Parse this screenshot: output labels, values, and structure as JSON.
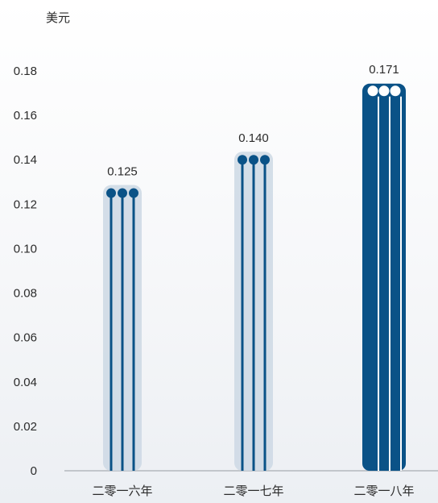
{
  "chart_data": {
    "type": "bar",
    "ylabel": "美元",
    "categories": [
      "二零一六年",
      "二零一七年",
      "二零一八年"
    ],
    "values": [
      0.125,
      0.14,
      0.171
    ],
    "value_labels": [
      "0.125",
      "0.140",
      "0.171"
    ],
    "ylim": [
      0,
      0.18
    ],
    "yticks": [
      0,
      0.02,
      0.04,
      0.06,
      0.08,
      0.1,
      0.12,
      0.14,
      0.16,
      0.18
    ],
    "ytick_labels": [
      "0",
      "0.02",
      "0.04",
      "0.06",
      "0.08",
      "0.10",
      "0.12",
      "0.14",
      "0.16",
      "0.18"
    ],
    "grid": false,
    "colors": {
      "bar": "#0a5287",
      "halo": "#cdd8e4",
      "axis": "#b3b7bd",
      "highlight_fill": "#ffffff"
    },
    "highlight_index": 2
  }
}
